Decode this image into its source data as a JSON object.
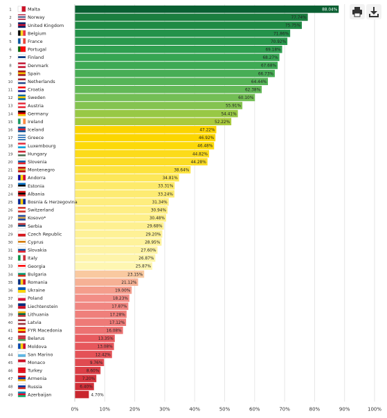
{
  "toolbar": {
    "print_icon": "print-icon",
    "download_icon": "download-icon"
  },
  "chart_data": {
    "type": "bar",
    "orientation": "horizontal",
    "xlim": [
      0,
      100
    ],
    "grid": true,
    "x_ticks": [
      "0%",
      "10%",
      "20%",
      "30%",
      "40%",
      "50%",
      "60%",
      "70%",
      "80%",
      "90%",
      "100%"
    ],
    "categories": [
      "Malta",
      "Norway",
      "United Kingdom",
      "Belgium",
      "France",
      "Portugal",
      "Finland",
      "Denmark",
      "Spain",
      "Netherlands",
      "Croatia",
      "Sweden",
      "Austria",
      "Germany",
      "Ireland",
      "Iceland",
      "Greece",
      "Luxembourg",
      "Hungary",
      "Slovenia",
      "Montenegro",
      "Andorra",
      "Estonia",
      "Albania",
      "Bosnia & Herzegovina",
      "Switzerland",
      "Kosovo*",
      "Serbia",
      "Czech Republic",
      "Cyprus",
      "Slovakia",
      "Italy",
      "Georgia",
      "Bulgaria",
      "Romania",
      "Ukraine",
      "Poland",
      "Liechtenstein",
      "Lithuania",
      "Latvia",
      "FYR Macedonia",
      "Belarus",
      "Moldova",
      "San Marino",
      "Monaco",
      "Turkey",
      "Armenia",
      "Russia",
      "Azerbaijan"
    ],
    "values": [
      88.04,
      77.74,
      75.75,
      71.86,
      70.92,
      69.18,
      68.27,
      67.68,
      66.73,
      64.44,
      62.38,
      60.1,
      55.91,
      54.41,
      52.22,
      47.22,
      46.92,
      46.48,
      44.82,
      44.28,
      38.64,
      34.81,
      33.31,
      33.24,
      31.34,
      30.94,
      30.48,
      29.68,
      29.2,
      28.95,
      27.6,
      26.87,
      25.87,
      23.15,
      21.12,
      19.0,
      18.23,
      17.87,
      17.28,
      17.12,
      16.08,
      13.35,
      13.08,
      12.42,
      9.76,
      8.6,
      7.2,
      6.4,
      4.7
    ],
    "value_labels": [
      "88.04%",
      "77.74%",
      "75.75%",
      "71.86%",
      "70.92%",
      "69.18%",
      "68.27%",
      "67.68%",
      "66.73%",
      "64.44%",
      "62.38%",
      "60.10%",
      "55.91%",
      "54.41%",
      "52.22%",
      "47.22%",
      "46.92%",
      "46.48%",
      "44.82%",
      "44.28%",
      "38.64%",
      "34.81%",
      "33.31%",
      "33.24%",
      "31.34%",
      "30.94%",
      "30.48%",
      "29.68%",
      "29.20%",
      "28.95%",
      "27.60%",
      "26.87%",
      "25.87%",
      "23.15%",
      "21.12%",
      "19.00%",
      "18.23%",
      "17.87%",
      "17.28%",
      "17.12%",
      "16.08%",
      "13.35%",
      "13.08%",
      "12.42%",
      "9.76%",
      "8.60%",
      "7.20%",
      "6.40%",
      "4.70%"
    ],
    "bar_colors": [
      "#0a5f32",
      "#1b7e3f",
      "#1f8a44",
      "#23924a",
      "#29994d",
      "#2f9f50",
      "#36a552",
      "#3ea954",
      "#47ad55",
      "#55b457",
      "#62b857",
      "#73be55",
      "#84c350",
      "#98c845",
      "#a9ca3d",
      "#fcd400",
      "#fcd600",
      "#fcd90a",
      "#fcdb1a",
      "#fcdd26",
      "#fde33d",
      "#fde758",
      "#fdea6a",
      "#fdeb72",
      "#feed7e",
      "#feee84",
      "#feef89",
      "#fef090",
      "#fef196",
      "#fef29b",
      "#fef3a4",
      "#fef4a9",
      "#fef6b1",
      "#f9c9a0",
      "#f6b195",
      "#f49d8c",
      "#f28d86",
      "#f08580",
      "#ef7f7b",
      "#ee7a77",
      "#ec7272",
      "#e85b5f",
      "#e6575c",
      "#e45257",
      "#e04a50",
      "#db3f46",
      "#d6353d",
      "#d12f38",
      "#c9262e"
    ],
    "flags": [
      [
        [
          "#ffffff",
          "#ce1126"
        ]
      ],
      [
        [
          "#ba0c2f"
        ],
        [
          "#ffffff"
        ],
        [
          "#00205b"
        ],
        [
          "#ffffff"
        ],
        [
          "#ba0c2f"
        ]
      ],
      [
        [
          "#012169"
        ],
        [
          "#c8102e"
        ],
        [
          "#012169"
        ]
      ],
      [
        [
          "#000000",
          "#fdda24",
          "#ef3340"
        ]
      ],
      [
        [
          "#0055a4",
          "#ffffff",
          "#ef4135"
        ]
      ],
      [
        [
          "#006600",
          "#ff0000",
          "#ff0000"
        ]
      ],
      [
        [
          "#ffffff"
        ],
        [
          "#003580"
        ],
        [
          "#ffffff"
        ]
      ],
      [
        [
          "#c8102e"
        ],
        [
          "#ffffff"
        ],
        [
          "#c8102e"
        ]
      ],
      [
        [
          "#aa151b"
        ],
        [
          "#f1bf00"
        ],
        [
          "#aa151b"
        ]
      ],
      [
        [
          "#ae1c28"
        ],
        [
          "#ffffff"
        ],
        [
          "#21468b"
        ]
      ],
      [
        [
          "#ff0000"
        ],
        [
          "#ffffff"
        ],
        [
          "#171796"
        ]
      ],
      [
        [
          "#006aa7"
        ],
        [
          "#fecc00"
        ],
        [
          "#006aa7"
        ]
      ],
      [
        [
          "#ed2939"
        ],
        [
          "#ffffff"
        ],
        [
          "#ed2939"
        ]
      ],
      [
        [
          "#000000"
        ],
        [
          "#dd0000"
        ],
        [
          "#ffce00"
        ]
      ],
      [
        [
          "#169b62",
          "#ffffff",
          "#ff883e"
        ]
      ],
      [
        [
          "#02529c"
        ],
        [
          "#dc1e35"
        ],
        [
          "#02529c"
        ]
      ],
      [
        [
          "#0d5eaf"
        ],
        [
          "#ffffff"
        ],
        [
          "#0d5eaf"
        ],
        [
          "#ffffff"
        ],
        [
          "#0d5eaf"
        ]
      ],
      [
        [
          "#ed2939"
        ],
        [
          "#ffffff"
        ],
        [
          "#00a1de"
        ]
      ],
      [
        [
          "#ce2939"
        ],
        [
          "#ffffff"
        ],
        [
          "#477050"
        ]
      ],
      [
        [
          "#ffffff"
        ],
        [
          "#005da4"
        ],
        [
          "#ed1c24"
        ]
      ],
      [
        [
          "#c40308"
        ],
        [
          "#d4af37"
        ],
        [
          "#c40308"
        ]
      ],
      [
        [
          "#10069f",
          "#fedd00",
          "#d50032"
        ]
      ],
      [
        [
          "#0072ce"
        ],
        [
          "#000000"
        ],
        [
          "#ffffff"
        ]
      ],
      [
        [
          "#e41e20"
        ],
        [
          "#000000"
        ],
        [
          "#e41e20"
        ]
      ],
      [
        [
          "#002395",
          "#fecb00",
          "#002395"
        ]
      ],
      [
        [
          "#d52b1e"
        ],
        [
          "#ffffff"
        ],
        [
          "#d52b1e"
        ]
      ],
      [
        [
          "#244aa5"
        ],
        [
          "#d0a650"
        ],
        [
          "#244aa5"
        ]
      ],
      [
        [
          "#c6363c"
        ],
        [
          "#0c4076"
        ],
        [
          "#ffffff"
        ]
      ],
      [
        [
          "#ffffff"
        ],
        [
          "#d7141a"
        ]
      ],
      [
        [
          "#ffffff"
        ],
        [
          "#d57800"
        ],
        [
          "#ffffff"
        ]
      ],
      [
        [
          "#ffffff"
        ],
        [
          "#0b4ea2"
        ],
        [
          "#ee1c25"
        ]
      ],
      [
        [
          "#009246",
          "#ffffff",
          "#ce2b37"
        ]
      ],
      [
        [
          "#ffffff"
        ],
        [
          "#ff0000"
        ],
        [
          "#ffffff"
        ]
      ],
      [
        [
          "#ffffff"
        ],
        [
          "#00966e"
        ],
        [
          "#d62612"
        ]
      ],
      [
        [
          "#002b7f",
          "#fcd116",
          "#ce1126"
        ]
      ],
      [
        [
          "#0057b7"
        ],
        [
          "#ffd700"
        ]
      ],
      [
        [
          "#ffffff"
        ],
        [
          "#dc143c"
        ]
      ],
      [
        [
          "#002b7f"
        ],
        [
          "#ce1126"
        ]
      ],
      [
        [
          "#fdb913"
        ],
        [
          "#006a44"
        ],
        [
          "#c1272d"
        ]
      ],
      [
        [
          "#9e3039"
        ],
        [
          "#ffffff"
        ],
        [
          "#9e3039"
        ]
      ],
      [
        [
          "#d20000"
        ],
        [
          "#ffe600"
        ],
        [
          "#d20000"
        ]
      ],
      [
        [
          "#c8313e"
        ],
        [
          "#c8313e"
        ],
        [
          "#4aa657"
        ]
      ],
      [
        [
          "#0046ae",
          "#ffd200",
          "#cc092f"
        ]
      ],
      [
        [
          "#ffffff"
        ],
        [
          "#5eb6e4"
        ]
      ],
      [
        [
          "#ce1126"
        ],
        [
          "#ffffff"
        ]
      ],
      [
        [
          "#e30a17"
        ],
        [
          "#e30a17"
        ],
        [
          "#e30a17"
        ]
      ],
      [
        [
          "#d90012"
        ],
        [
          "#0033a0"
        ],
        [
          "#f2a800"
        ]
      ],
      [
        [
          "#ffffff"
        ],
        [
          "#0039a6"
        ],
        [
          "#d52b1e"
        ]
      ],
      [
        [
          "#0092bc"
        ],
        [
          "#e4002b"
        ],
        [
          "#00af66"
        ]
      ]
    ]
  }
}
